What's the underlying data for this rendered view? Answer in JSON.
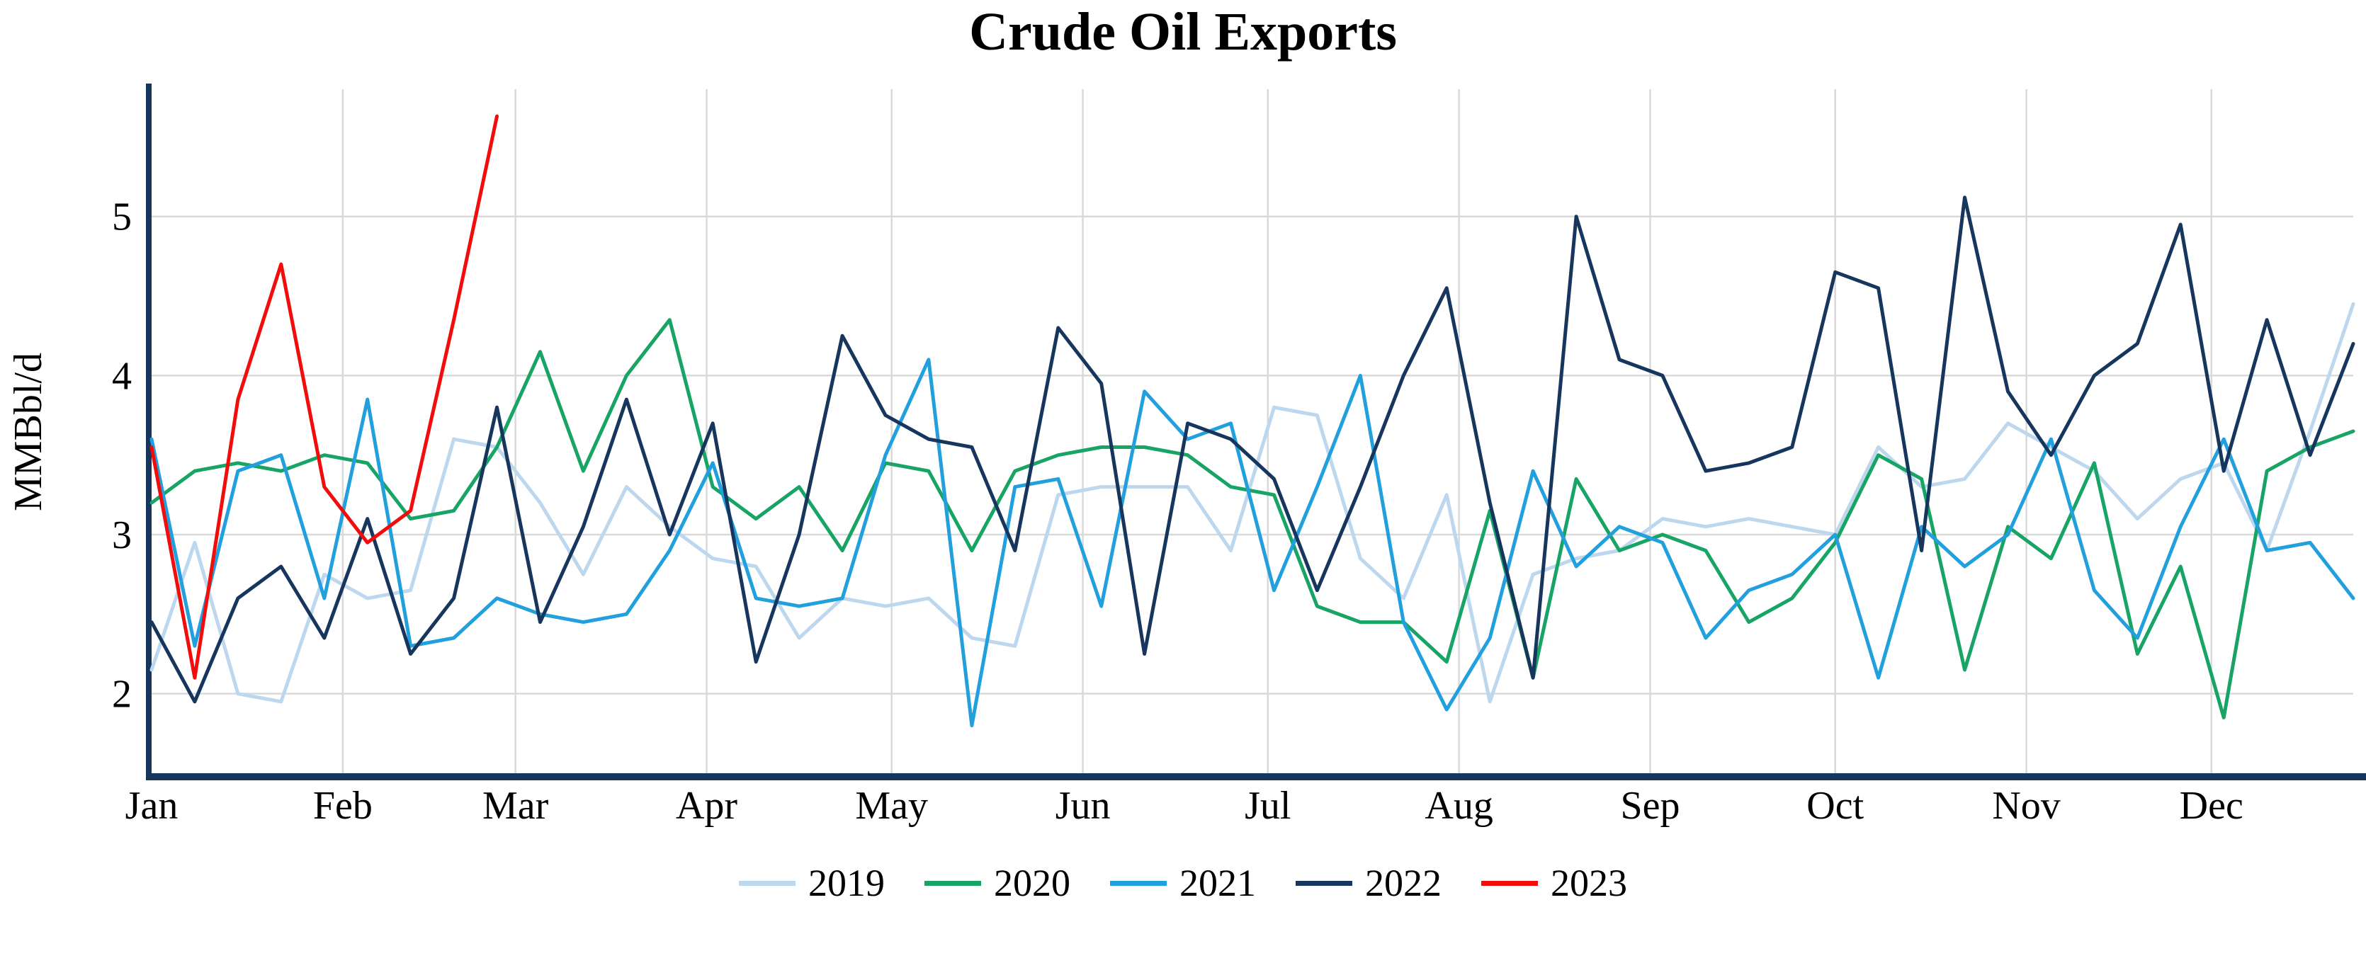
{
  "chart_data": {
    "type": "line",
    "title": "Crude Oil Exports",
    "ylabel": "MMBbl/d",
    "xlabel": "",
    "x_unit": "weekly observations, Jan through Dec",
    "categories": [
      "Jan",
      "Feb",
      "Mar",
      "Apr",
      "May",
      "Jun",
      "Jul",
      "Aug",
      "Sep",
      "Oct",
      "Nov",
      "Dec"
    ],
    "month_start_days": [
      0,
      31,
      59,
      90,
      120,
      151,
      181,
      212,
      243,
      273,
      304,
      334
    ],
    "days_per_year": 357,
    "yticks": [
      2,
      3,
      4,
      5
    ],
    "ylim": [
      1.5,
      5.8
    ],
    "grid": true,
    "grid_color": "#d9d9d9",
    "axis_color": "#17365d",
    "legend_position": "bottom",
    "series": [
      {
        "name": "2019",
        "color": "#bdd7ee",
        "values": [
          2.15,
          2.95,
          2.0,
          1.95,
          2.75,
          2.6,
          2.65,
          3.6,
          3.55,
          3.2,
          2.75,
          3.3,
          3.05,
          2.85,
          2.8,
          2.35,
          2.6,
          2.55,
          2.6,
          2.35,
          2.3,
          3.25,
          3.3,
          3.3,
          3.3,
          2.9,
          3.8,
          3.75,
          2.85,
          2.6,
          3.25,
          1.95,
          2.75,
          2.85,
          2.9,
          3.1,
          3.05,
          3.1,
          3.05,
          3.0,
          3.55,
          3.3,
          3.35,
          3.7,
          3.55,
          3.4,
          3.1,
          3.35,
          3.45,
          2.9,
          3.65,
          4.45
        ]
      },
      {
        "name": "2020",
        "color": "#18a464",
        "values": [
          3.2,
          3.4,
          3.45,
          3.4,
          3.5,
          3.45,
          3.1,
          3.15,
          3.55,
          4.15,
          3.4,
          4.0,
          4.35,
          3.3,
          3.1,
          3.3,
          2.9,
          3.45,
          3.4,
          2.9,
          3.4,
          3.5,
          3.55,
          3.55,
          3.5,
          3.3,
          3.25,
          2.55,
          2.45,
          2.45,
          2.2,
          3.15,
          2.1,
          3.35,
          2.9,
          3.0,
          2.9,
          2.45,
          2.6,
          2.95,
          3.5,
          3.35,
          2.15,
          3.05,
          2.85,
          3.45,
          2.25,
          2.8,
          1.85,
          3.4,
          3.55,
          3.65
        ]
      },
      {
        "name": "2021",
        "color": "#22a0dd",
        "values": [
          3.6,
          2.3,
          3.4,
          3.5,
          2.6,
          3.85,
          2.3,
          2.35,
          2.6,
          2.5,
          2.45,
          2.5,
          2.9,
          3.45,
          2.6,
          2.55,
          2.6,
          3.5,
          4.1,
          1.8,
          3.3,
          3.35,
          2.55,
          3.9,
          3.6,
          3.7,
          2.65,
          3.3,
          4.0,
          2.45,
          1.9,
          2.35,
          3.4,
          2.8,
          3.05,
          2.95,
          2.35,
          2.65,
          2.75,
          3.0,
          2.1,
          3.05,
          2.8,
          3.0,
          3.6,
          2.65,
          2.35,
          3.05,
          3.6,
          2.9,
          2.95,
          2.6
        ]
      },
      {
        "name": "2022",
        "color": "#17365d",
        "values": [
          2.45,
          1.95,
          2.6,
          2.8,
          2.35,
          3.1,
          2.25,
          2.6,
          3.8,
          2.45,
          3.05,
          3.85,
          3.0,
          3.7,
          2.2,
          3.0,
          4.25,
          3.75,
          3.6,
          3.55,
          2.9,
          4.3,
          3.95,
          2.25,
          3.7,
          3.6,
          3.35,
          2.65,
          3.3,
          4.0,
          4.55,
          3.2,
          2.1,
          5.0,
          4.1,
          4.0,
          3.4,
          3.45,
          3.55,
          4.65,
          4.55,
          2.9,
          5.12,
          3.9,
          3.5,
          4.0,
          4.2,
          4.95,
          3.4,
          4.35,
          3.5,
          4.2
        ]
      },
      {
        "name": "2023",
        "color": "#f20d0d",
        "values": [
          3.55,
          2.1,
          3.85,
          4.7,
          3.3,
          2.95,
          3.15,
          4.35,
          5.63
        ]
      }
    ]
  }
}
